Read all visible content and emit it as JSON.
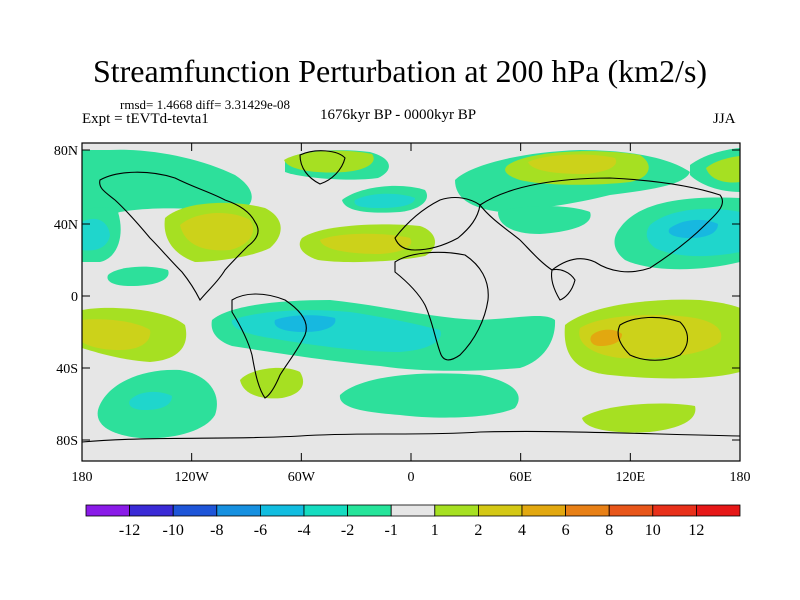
{
  "title": "Streamfunction Perturbation at 200 hPa (km2/s)",
  "stats": "rmsd= 1.4668  diff= 3.31429e-08",
  "experiment": "Expt = tEVTd-tevta1",
  "period": "1676kyr BP - 0000kyr BP",
  "season": "JJA",
  "lat_ticks": [
    "80N",
    "40N",
    "0",
    "40S",
    "80S"
  ],
  "lon_ticks": [
    "180",
    "120W",
    "60W",
    "0",
    "60E",
    "120E",
    "180"
  ],
  "colorbar": {
    "labels": [
      "-12",
      "-10",
      "-8",
      "-6",
      "-4",
      "-2",
      "-1",
      "1",
      "2",
      "4",
      "6",
      "8",
      "10",
      "12"
    ],
    "colors": [
      "#8a1be8",
      "#3a2ad6",
      "#1e55d8",
      "#1690e0",
      "#11bde0",
      "#15dcc0",
      "#26e49a",
      "#e6e6e6",
      "#a6e022",
      "#d4c815",
      "#e2a810",
      "#e88016",
      "#e8561a",
      "#e8301a",
      "#e61717"
    ]
  },
  "palette": {
    "neutral": "#e6e6e6",
    "green": "#2de09b",
    "cyan": "#1fd6cc",
    "blue": "#17b8e0",
    "lime": "#a6e022",
    "olive": "#ccd21a",
    "orange": "#e2a810"
  }
}
